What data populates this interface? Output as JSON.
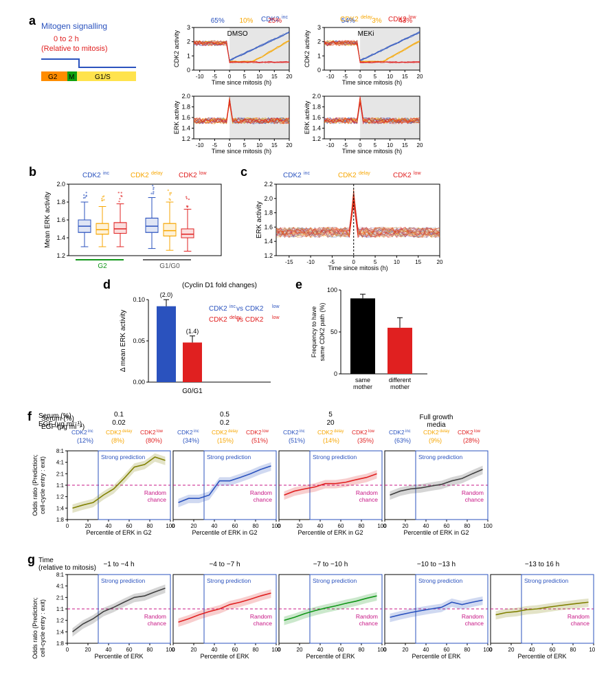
{
  "palette": {
    "inc": "#2a52be",
    "delay": "#f7a600",
    "low": "#e02020",
    "black": "#000000",
    "red": "#e02020",
    "grey_bg": "#e6e6e6",
    "magenta": "#c71585",
    "blue_box": "#2a52be",
    "green": "#109618",
    "olive": "#808000",
    "lightblue": "#6d8ecf"
  },
  "labels": {
    "inc": "CDK2",
    "inc_sup": "inc",
    "delay": "CDK2",
    "delay_sup": "delay",
    "low": "CDK2",
    "low_sup": "low"
  },
  "a": {
    "scheme": {
      "title1": "Mitogen signalling",
      "title2a": "0 to 2 h",
      "title2b": "(Relative to mitosis)",
      "g2": "G2",
      "m": "M",
      "g1s": "G1/S"
    },
    "dmso": {
      "label": "DMSO",
      "pct": {
        "inc": "65%",
        "delay": "10%",
        "low": "25%"
      }
    },
    "meki": {
      "label": "MEKi",
      "pct": {
        "inc": "54%",
        "delay": "3%",
        "low": "43%"
      }
    },
    "cdk2": {
      "ylabel": "CDK2 activity",
      "ylim": [
        0,
        3
      ],
      "yticks": [
        0,
        1,
        2,
        3
      ],
      "xlim": [
        -12,
        20
      ],
      "xticks": [
        -10,
        -5,
        0,
        5,
        10,
        15,
        20
      ],
      "xlabel": "Time since mitosis (h)"
    },
    "erk": {
      "ylabel": "ERK activity",
      "ylim": [
        1.2,
        2.0
      ],
      "yticks": [
        1.2,
        1.4,
        1.6,
        1.8,
        2.0
      ],
      "xlim": [
        -12,
        20
      ],
      "xticks": [
        -10,
        -5,
        0,
        5,
        10,
        15,
        20
      ],
      "xlabel": "Time since mitosis (h)"
    }
  },
  "b": {
    "ylabel": "Mean ERK activity",
    "ylim": [
      1.2,
      2.0
    ],
    "yticks": [
      1.2,
      1.4,
      1.6,
      1.8,
      2.0
    ],
    "g2": "G2",
    "g1": "G1/G0",
    "boxes": {
      "g2": {
        "inc": {
          "q1": 1.46,
          "med": 1.53,
          "q3": 1.6,
          "wl": 1.3,
          "wh": 1.8
        },
        "delay": {
          "q1": 1.44,
          "med": 1.49,
          "q3": 1.56,
          "wl": 1.3,
          "wh": 1.75
        },
        "low": {
          "q1": 1.45,
          "med": 1.5,
          "q3": 1.57,
          "wl": 1.3,
          "wh": 1.78
        }
      },
      "g1": {
        "inc": {
          "q1": 1.46,
          "med": 1.53,
          "q3": 1.62,
          "wl": 1.28,
          "wh": 1.85
        },
        "delay": {
          "q1": 1.42,
          "med": 1.48,
          "q3": 1.56,
          "wl": 1.26,
          "wh": 1.8
        },
        "low": {
          "q1": 1.4,
          "med": 1.44,
          "q3": 1.5,
          "wl": 1.25,
          "wh": 1.72
        }
      }
    }
  },
  "c": {
    "ylabel": "ERK activity",
    "ylim": [
      1.2,
      2.2
    ],
    "yticks": [
      1.2,
      1.4,
      1.6,
      1.8,
      2.0,
      2.2
    ],
    "xlim": [
      -18,
      20
    ],
    "xticks": [
      -15,
      -10,
      -5,
      0,
      5,
      10,
      15,
      20
    ],
    "xlabel": "Time since mitosis (h)"
  },
  "d": {
    "title": "(Cyclin D1 fold changes)",
    "ylabel": "Δ mean ERK activity",
    "ylim": [
      0,
      0.1
    ],
    "yticks": [
      0,
      0.05,
      0.1
    ],
    "xlabel": "G0/G1",
    "bars": {
      "blue": 0.092,
      "red": 0.048
    },
    "err": {
      "blue": 0.008,
      "red": 0.008
    },
    "ann": {
      "blue": "(2.0)",
      "red": "(1.4)"
    },
    "leg": {
      "blue": "CDK2     vs CDK2",
      "red": "CDK2       vs CDK2"
    },
    "leg_blue_a": "CDK2",
    "leg_blue_a_sup": "inc",
    "leg_blue_b": " vs CDK2",
    "leg_blue_b_sup": "low",
    "leg_red_a": "CDK2",
    "leg_red_a_sup": "delay",
    "leg_red_b": " vs CDK2",
    "leg_red_b_sup": "low"
  },
  "e": {
    "ylabel": "Frequency to have\nsame CDK2 path (%)",
    "ylim": [
      0,
      100
    ],
    "yticks": [
      0,
      50,
      100
    ],
    "bars": {
      "same": 90,
      "diff": 55
    },
    "err": {
      "same": 5,
      "diff": 12
    },
    "x": {
      "same": "same\nmother",
      "diff": "different\nmother"
    }
  },
  "f": {
    "hdr_serum": "Serum (%)",
    "hdr_egf": "EGF (µg ml⁻¹)",
    "cols": [
      {
        "serum": "0.1",
        "egf": "0.02",
        "pct": {
          "inc": "(12%)",
          "delay": "(8%)",
          "low": "(80%)"
        }
      },
      {
        "serum": "0.5",
        "egf": "0.2",
        "pct": {
          "inc": "(34%)",
          "delay": "(15%)",
          "low": "(51%)"
        }
      },
      {
        "serum": "5",
        "egf": "20",
        "pct": {
          "inc": "(51%)",
          "delay": "(14%)",
          "low": "(35%)"
        }
      },
      {
        "serum": "",
        "egf": "",
        "label": "Full growth\nmedia",
        "pct": {
          "inc": "(63%)",
          "delay": "(9%)",
          "low": "(28%)"
        }
      }
    ],
    "ylabel": "Odds ratio (Prediction;\ncell-cycle entry : exit)",
    "xlabel": "Percentile of ERK in G2",
    "yticks": [
      "1:8",
      "1:4",
      "1:2",
      "1:1",
      "2:1",
      "4:1",
      "8:1"
    ],
    "xticks": [
      0,
      20,
      40,
      60,
      80,
      100
    ],
    "strong": "Strong prediction",
    "random": "Random\nchance",
    "series": [
      {
        "color": "#808000",
        "pts": [
          [
            5,
            0.25
          ],
          [
            15,
            0.3
          ],
          [
            25,
            0.35
          ],
          [
            35,
            0.55
          ],
          [
            45,
            0.8
          ],
          [
            55,
            1.5
          ],
          [
            65,
            3.0
          ],
          [
            75,
            3.5
          ],
          [
            85,
            5.5
          ],
          [
            95,
            4.5
          ]
        ]
      },
      {
        "color": "#2a52be",
        "pts": [
          [
            5,
            0.35
          ],
          [
            15,
            0.45
          ],
          [
            25,
            0.45
          ],
          [
            35,
            0.55
          ],
          [
            45,
            1.3
          ],
          [
            55,
            1.3
          ],
          [
            65,
            1.6
          ],
          [
            75,
            2.0
          ],
          [
            85,
            2.6
          ],
          [
            95,
            3.2
          ]
        ]
      },
      {
        "color": "#e02020",
        "pts": [
          [
            5,
            0.55
          ],
          [
            15,
            0.7
          ],
          [
            25,
            0.8
          ],
          [
            35,
            0.9
          ],
          [
            45,
            1.1
          ],
          [
            55,
            1.1
          ],
          [
            65,
            1.2
          ],
          [
            75,
            1.4
          ],
          [
            85,
            1.6
          ],
          [
            95,
            2.0
          ]
        ]
      },
      {
        "color": "#404040",
        "pts": [
          [
            5,
            0.55
          ],
          [
            15,
            0.7
          ],
          [
            25,
            0.8
          ],
          [
            35,
            0.85
          ],
          [
            45,
            0.95
          ],
          [
            55,
            1.05
          ],
          [
            65,
            1.3
          ],
          [
            75,
            1.5
          ],
          [
            85,
            2.0
          ],
          [
            95,
            2.6
          ]
        ]
      }
    ]
  },
  "g": {
    "hdr": "Time\n(relative to mitosis)",
    "cols": [
      {
        "label": "−1 to −4 h",
        "color": "#404040"
      },
      {
        "label": "−4 to −7 h",
        "color": "#e02020"
      },
      {
        "label": "−7 to −10 h",
        "color": "#109618"
      },
      {
        "label": "−10 to −13 h",
        "color": "#2a52be"
      },
      {
        "label": "−13 to 16 h",
        "color": "#808000"
      }
    ],
    "ylabel": "Odds ratio (Prediction;\ncell-cycle entry : exit)",
    "xlabel": "Percentile of ERK",
    "yticks": [
      "1:8",
      "1:4",
      "1:2",
      "1:1",
      "2:1",
      "4:1",
      "8:1"
    ],
    "xticks": [
      0,
      20,
      40,
      60,
      80,
      100
    ],
    "series": [
      [
        [
          5,
          0.25
        ],
        [
          15,
          0.4
        ],
        [
          25,
          0.55
        ],
        [
          35,
          0.85
        ],
        [
          45,
          1.1
        ],
        [
          55,
          1.5
        ],
        [
          65,
          2.0
        ],
        [
          75,
          2.2
        ],
        [
          85,
          2.8
        ],
        [
          95,
          3.5
        ]
      ],
      [
        [
          5,
          0.45
        ],
        [
          15,
          0.55
        ],
        [
          25,
          0.7
        ],
        [
          35,
          0.85
        ],
        [
          45,
          1.0
        ],
        [
          55,
          1.3
        ],
        [
          65,
          1.5
        ],
        [
          75,
          1.8
        ],
        [
          85,
          2.2
        ],
        [
          95,
          2.6
        ]
      ],
      [
        [
          5,
          0.5
        ],
        [
          15,
          0.6
        ],
        [
          25,
          0.75
        ],
        [
          35,
          0.9
        ],
        [
          45,
          1.05
        ],
        [
          55,
          1.2
        ],
        [
          65,
          1.4
        ],
        [
          75,
          1.6
        ],
        [
          85,
          1.9
        ],
        [
          95,
          2.2
        ]
      ],
      [
        [
          5,
          0.6
        ],
        [
          15,
          0.7
        ],
        [
          25,
          0.8
        ],
        [
          35,
          0.9
        ],
        [
          45,
          1.0
        ],
        [
          55,
          1.1
        ],
        [
          65,
          1.5
        ],
        [
          75,
          1.3
        ],
        [
          85,
          1.5
        ],
        [
          95,
          1.7
        ]
      ],
      [
        [
          5,
          0.7
        ],
        [
          15,
          0.8
        ],
        [
          25,
          0.85
        ],
        [
          35,
          0.95
        ],
        [
          45,
          1.0
        ],
        [
          55,
          1.1
        ],
        [
          65,
          1.2
        ],
        [
          75,
          1.3
        ],
        [
          85,
          1.4
        ],
        [
          95,
          1.5
        ]
      ]
    ]
  }
}
